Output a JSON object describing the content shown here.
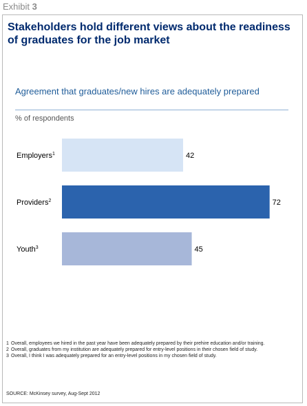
{
  "exhibit": {
    "label": "Exhibit",
    "number": "3"
  },
  "headline": "Stakeholders hold different views about the readiness of graduates for the job market",
  "chart_data": {
    "type": "bar",
    "orientation": "horizontal",
    "title": "Agreement that graduates/new hires are adequately prepared",
    "unit": "% of respondents",
    "categories": [
      "Employers",
      "Providers",
      "Youth"
    ],
    "category_notes": [
      "1",
      "2",
      "3"
    ],
    "values": [
      42,
      72,
      45
    ],
    "colors": [
      "#d6e4f5",
      "#2b63ad",
      "#a7b7d9"
    ],
    "xlim": [
      0,
      100
    ],
    "grid": false,
    "legend": "none"
  },
  "footnotes": [
    {
      "num": "1",
      "text": "Overall, employees we hired in the past year have been adequately prepared by their prehire education and/or training."
    },
    {
      "num": "2",
      "text": "Overall, graduates from my institution are adequately prepared for entry-level positions in their chosen field of study."
    },
    {
      "num": "3",
      "text": "Overall, I think I was adequately prepared for an entry-level positions in my chosen field of study."
    }
  ],
  "source": "SOURCE: McKinsey survey, Aug-Sept 2012"
}
